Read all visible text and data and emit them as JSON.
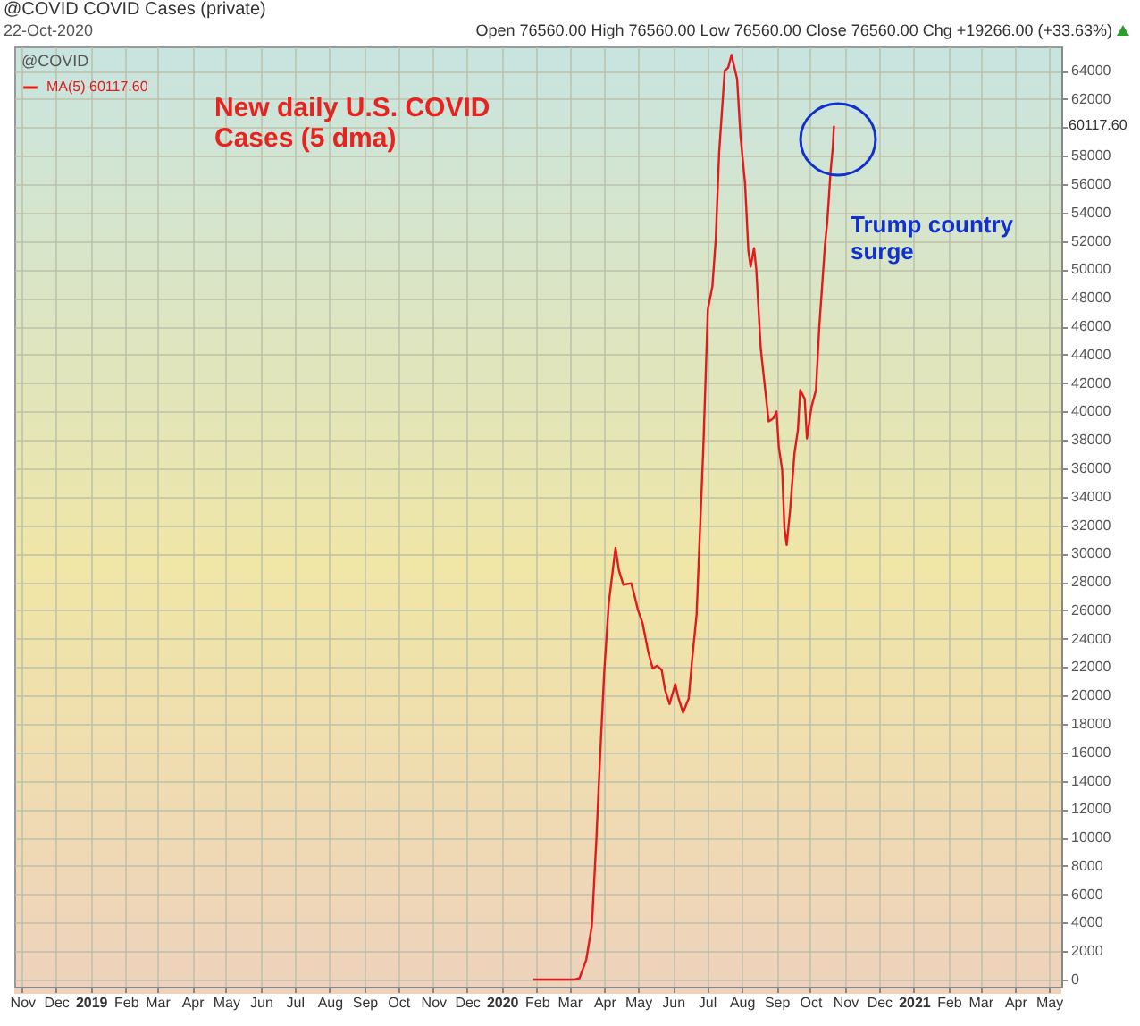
{
  "chart_data": {
    "type": "line",
    "title": "@COVID COVID Cases (private)",
    "subtitle": "22-Oct-2020",
    "legend_title": "@COVID",
    "legend": "top left",
    "grid": true,
    "marker": "none",
    "line_style": "solid",
    "annotations": [
      "Open 76560.00 High 76560.00 Low 76560.00 Close 76560.00 Chg +19266.00 (+33.63%)",
      "New daily U.S. COVID Cases (5 dma)",
      "Trump country surge",
      "60117.60"
    ],
    "xlim": [
      "2018-10-25",
      "2021-05-12"
    ],
    "xticks": [
      {
        "value": "2018-11",
        "label": "Nov"
      },
      {
        "value": "2018-12",
        "label": "Dec"
      },
      {
        "value": "2019-01",
        "label": "2019"
      },
      {
        "value": "2019-02",
        "label": "Feb"
      },
      {
        "value": "2019-03",
        "label": "Mar"
      },
      {
        "value": "2019-04",
        "label": "Apr"
      },
      {
        "value": "2019-05",
        "label": "May"
      },
      {
        "value": "2019-06",
        "label": "Jun"
      },
      {
        "value": "2019-07",
        "label": "Jul"
      },
      {
        "value": "2019-08",
        "label": "Aug"
      },
      {
        "value": "2019-09",
        "label": "Sep"
      },
      {
        "value": "2019-10",
        "label": "Oct"
      },
      {
        "value": "2019-11",
        "label": "Nov"
      },
      {
        "value": "2019-12",
        "label": "Dec"
      },
      {
        "value": "2020-01",
        "label": "2020"
      },
      {
        "value": "2020-02",
        "label": "Feb"
      },
      {
        "value": "2020-03",
        "label": "Mar"
      },
      {
        "value": "2020-04",
        "label": "Apr"
      },
      {
        "value": "2020-05",
        "label": "May"
      },
      {
        "value": "2020-06",
        "label": "Jun"
      },
      {
        "value": "2020-07",
        "label": "Jul"
      },
      {
        "value": "2020-08",
        "label": "Aug"
      },
      {
        "value": "2020-09",
        "label": "Sep"
      },
      {
        "value": "2020-10",
        "label": "Oct"
      },
      {
        "value": "2020-11",
        "label": "Nov"
      },
      {
        "value": "2020-12",
        "label": "Dec"
      },
      {
        "value": "2021-01",
        "label": "2021"
      },
      {
        "value": "2021-02",
        "label": "Feb"
      },
      {
        "value": "2021-03",
        "label": "Mar"
      },
      {
        "value": "2021-04",
        "label": "Apr"
      },
      {
        "value": "2021-05",
        "label": "May"
      }
    ],
    "ylim": [
      -500,
      65700
    ],
    "yticks": [
      0,
      2000,
      4000,
      6000,
      8000,
      10000,
      12000,
      14000,
      16000,
      18000,
      20000,
      22000,
      24000,
      26000,
      28000,
      30000,
      32000,
      34000,
      36000,
      38000,
      40000,
      42000,
      44000,
      46000,
      48000,
      50000,
      52000,
      54000,
      56000,
      58000,
      {
        "value": 60000,
        "label": null
      },
      62000,
      64000
    ],
    "series": [
      {
        "name": "MA(5) 60117.60",
        "color": "#e31a1c",
        "x": [
          "2020-01-29",
          "2020-03-05",
          "2020-03-10",
          "2020-03-16",
          "2020-03-21",
          "2020-03-25",
          "2020-03-28",
          "2020-04-01",
          "2020-04-05",
          "2020-04-11",
          "2020-04-14",
          "2020-04-18",
          "2020-04-25",
          "2020-04-27",
          "2020-05-01",
          "2020-05-05",
          "2020-05-10",
          "2020-05-14",
          "2020-05-18",
          "2020-05-22",
          "2020-05-25",
          "2020-05-29",
          "2020-06-03",
          "2020-06-06",
          "2020-06-10",
          "2020-06-15",
          "2020-06-18",
          "2020-06-22",
          "2020-06-25",
          "2020-06-28",
          "2020-07-02",
          "2020-07-06",
          "2020-07-09",
          "2020-07-12",
          "2020-07-17",
          "2020-07-20",
          "2020-07-23",
          "2020-07-28",
          "2020-07-31",
          "2020-08-04",
          "2020-08-07",
          "2020-08-09",
          "2020-08-12",
          "2020-08-14",
          "2020-08-18",
          "2020-08-22",
          "2020-08-25",
          "2020-08-29",
          "2020-09-01",
          "2020-09-03",
          "2020-09-06",
          "2020-09-08",
          "2020-09-10",
          "2020-09-13",
          "2020-09-17",
          "2020-09-20",
          "2020-09-22",
          "2020-09-26",
          "2020-09-28",
          "2020-10-02",
          "2020-10-06",
          "2020-10-09",
          "2020-10-14",
          "2020-10-16",
          "2020-10-19",
          "2020-10-21",
          "2020-10-22"
        ],
        "values": [
          0,
          0,
          100,
          1400,
          3800,
          9900,
          15200,
          21700,
          26500,
          30400,
          28800,
          27800,
          27900,
          27300,
          26000,
          25100,
          23100,
          21900,
          22100,
          21800,
          20400,
          19400,
          20800,
          19800,
          18800,
          19800,
          22500,
          25700,
          31600,
          37500,
          47200,
          48800,
          52100,
          58200,
          64000,
          64200,
          65100,
          63400,
          59400,
          56100,
          51300,
          50200,
          51500,
          50000,
          44400,
          41500,
          39300,
          39500,
          40000,
          37500,
          35900,
          31800,
          30600,
          33000,
          37100,
          38700,
          41500,
          40900,
          38100,
          40300,
          41500,
          46000,
          51700,
          53300,
          56900,
          58600,
          60117.6
        ]
      }
    ]
  }
}
